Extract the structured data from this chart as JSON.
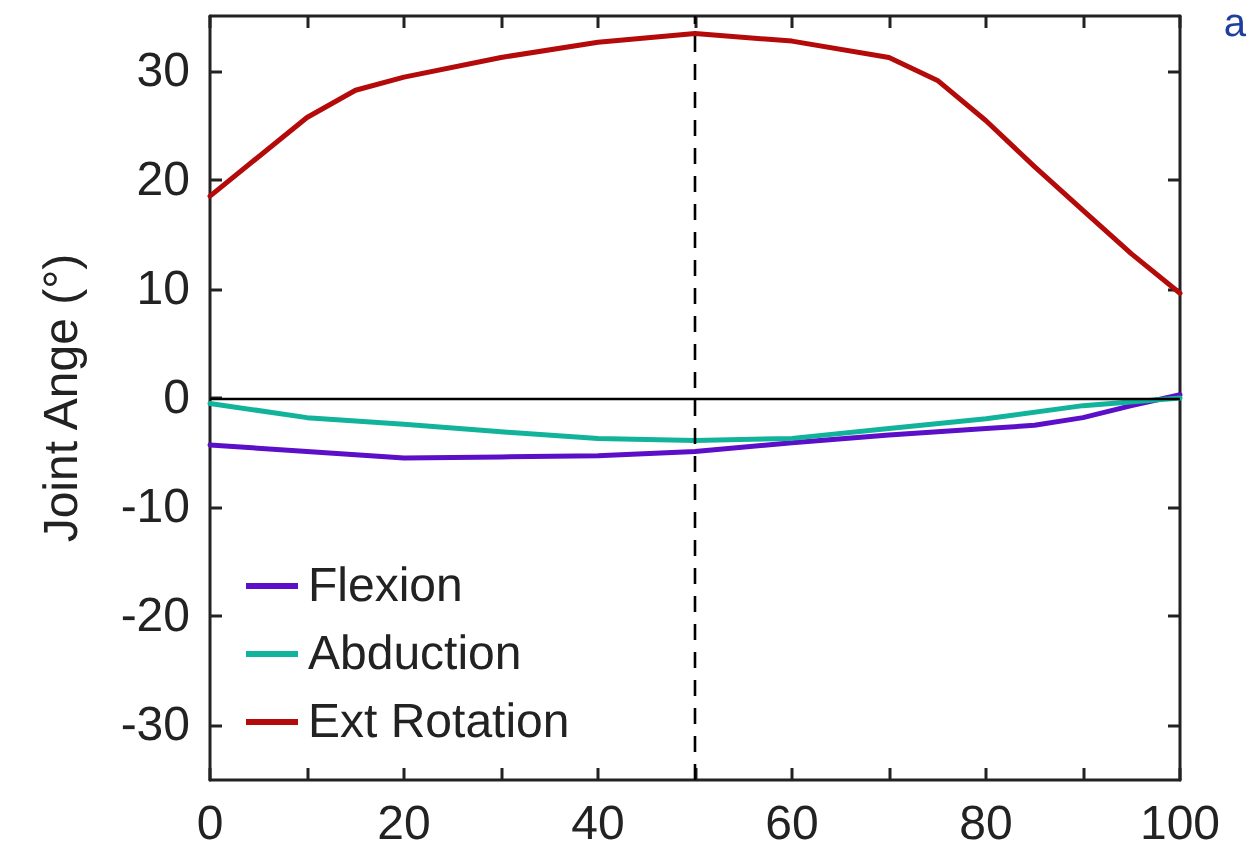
{
  "chart_data": {
    "type": "line",
    "ylabel": "Joint Ange (°)",
    "annotations": [
      "a"
    ],
    "x": [
      0,
      10,
      20,
      30,
      40,
      50,
      60,
      70,
      80,
      85,
      90,
      95,
      100
    ],
    "series": [
      {
        "name": "Flexion",
        "color": "#5b0fc8",
        "values": [
          -4.3,
          -4.9,
          -5.5,
          -5.4,
          -5.3,
          -4.9,
          -4.1,
          -3.4,
          -2.8,
          -2.5,
          -1.8,
          -0.7,
          0.3
        ]
      },
      {
        "name": "Abduction",
        "color": "#12b39b",
        "x": [
          0,
          10,
          20,
          30,
          40,
          50,
          60,
          70,
          80,
          90,
          100
        ],
        "values": [
          -0.5,
          -1.8,
          -2.4,
          -3.1,
          -3.7,
          -3.9,
          -3.7,
          -2.8,
          -1.9,
          -0.7,
          0
        ]
      },
      {
        "name": "Ext Rotation",
        "color": "#b40a0a",
        "x": [
          0,
          10,
          15,
          20,
          30,
          40,
          50,
          60,
          70,
          75,
          80,
          85,
          90,
          95,
          100
        ],
        "values": [
          18.5,
          25.7,
          28.2,
          29.4,
          31.2,
          32.6,
          33.4,
          32.7,
          31.2,
          29.1,
          25.4,
          21.2,
          17.2,
          13.2,
          9.6
        ]
      }
    ],
    "xlim": [
      0,
      100
    ],
    "ylim": [
      -35,
      35
    ],
    "xticks": [
      0,
      {
        "value": 10,
        "label": null
      },
      20,
      {
        "value": 30,
        "label": null
      },
      40,
      {
        "value": 50,
        "label": null
      },
      60,
      {
        "value": 70,
        "label": null
      },
      80,
      {
        "value": 90,
        "label": null
      },
      100
    ],
    "yticks": [
      -30,
      -20,
      -10,
      0,
      10,
      20,
      30
    ],
    "ref_lines": [
      {
        "axis": "x",
        "value": 50,
        "label": null,
        "color": "#000000",
        "line_style": "dashed"
      },
      {
        "axis": "y",
        "value": 0,
        "label": null,
        "color": "#000000",
        "line_style": "solid"
      }
    ],
    "legend": "bottom left",
    "grid": false,
    "marker": "none",
    "line_style": "solid"
  }
}
